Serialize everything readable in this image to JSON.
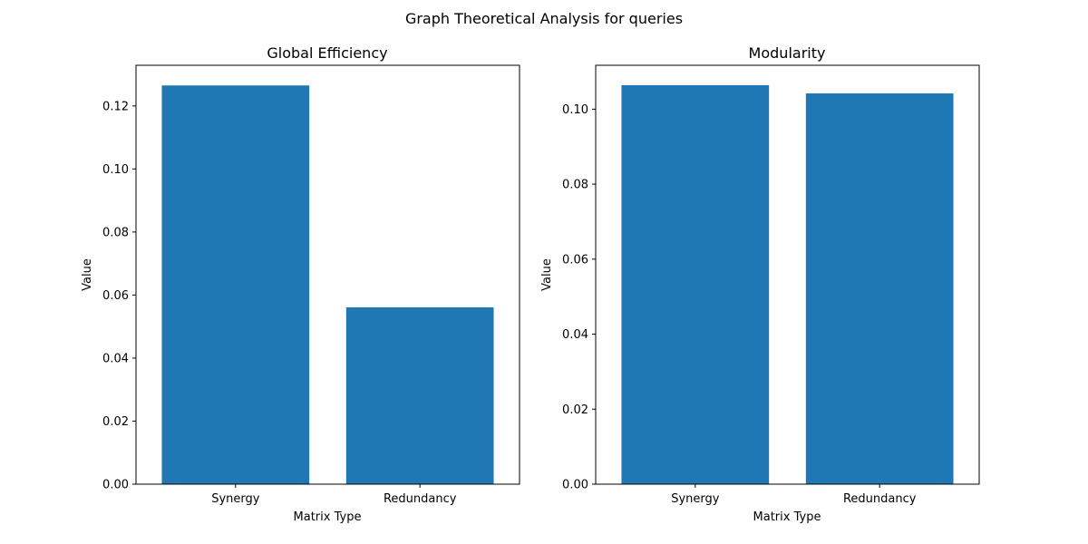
{
  "figure": {
    "suptitle": "Graph Theoretical Analysis for queries"
  },
  "chart_data": [
    {
      "type": "bar",
      "title": "Global Efficiency",
      "xlabel": "Matrix Type",
      "ylabel": "Value",
      "categories": [
        "Synergy",
        "Redundancy"
      ],
      "values": [
        0.1265,
        0.0561
      ],
      "ylim": [
        0,
        0.1329
      ],
      "yticks": [
        "0.00",
        "0.02",
        "0.04",
        "0.06",
        "0.08",
        "0.10",
        "0.12"
      ],
      "bar_color": "#1f77b4",
      "grid": false,
      "legend": "none"
    },
    {
      "type": "bar",
      "title": "Modularity",
      "xlabel": "Matrix Type",
      "ylabel": "Value",
      "categories": [
        "Synergy",
        "Redundancy"
      ],
      "values": [
        0.1064,
        0.1042
      ],
      "ylim": [
        0,
        0.1117
      ],
      "yticks": [
        "0.00",
        "0.02",
        "0.04",
        "0.06",
        "0.08",
        "0.10"
      ],
      "bar_color": "#1f77b4",
      "grid": false,
      "legend": "none"
    }
  ]
}
